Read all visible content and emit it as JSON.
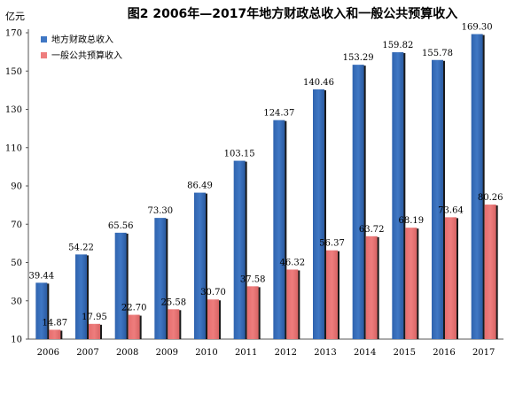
{
  "chart_data": {
    "type": "bar",
    "title": "图2    2006年—2017年地方财政总收入和一般公共预算收入",
    "ylabel": "亿元",
    "xlabel": "",
    "categories": [
      "2006",
      "2007",
      "2008",
      "2009",
      "2010",
      "2011",
      "2012",
      "2013",
      "2014",
      "2015",
      "2016",
      "2017"
    ],
    "series": [
      {
        "name": "地方财政总收入",
        "color": "#3f77c4",
        "values": [
          39.44,
          54.22,
          65.56,
          73.3,
          86.49,
          103.15,
          124.37,
          140.46,
          153.29,
          159.82,
          155.78,
          169.3
        ],
        "labels": [
          "39.44",
          "54.22",
          "65.56",
          "73.30",
          "86.49",
          "103.15",
          "124.37",
          "140.46",
          "153.29",
          "159.82",
          "155.78",
          "169.30"
        ]
      },
      {
        "name": "一般公共预算收入",
        "color": "#ee7d7d",
        "values": [
          14.87,
          17.95,
          22.7,
          25.58,
          30.7,
          37.58,
          46.32,
          56.37,
          63.72,
          68.19,
          73.64,
          80.26
        ],
        "labels": [
          "14.87",
          "17.95",
          "22.70",
          "25.58",
          "30.70",
          "37.58",
          "46.32",
          "56.37",
          "63.72",
          "68.19",
          "73.64",
          "80.26"
        ]
      }
    ],
    "ylim": [
      10,
      170
    ],
    "yticks": [
      10,
      30,
      50,
      70,
      90,
      110,
      130,
      150,
      170
    ],
    "ytick_labels": [
      "10",
      "30",
      "50",
      "70",
      "90",
      "110",
      "130",
      "150",
      "170"
    ],
    "grid": false,
    "legend_position": "top-left"
  }
}
